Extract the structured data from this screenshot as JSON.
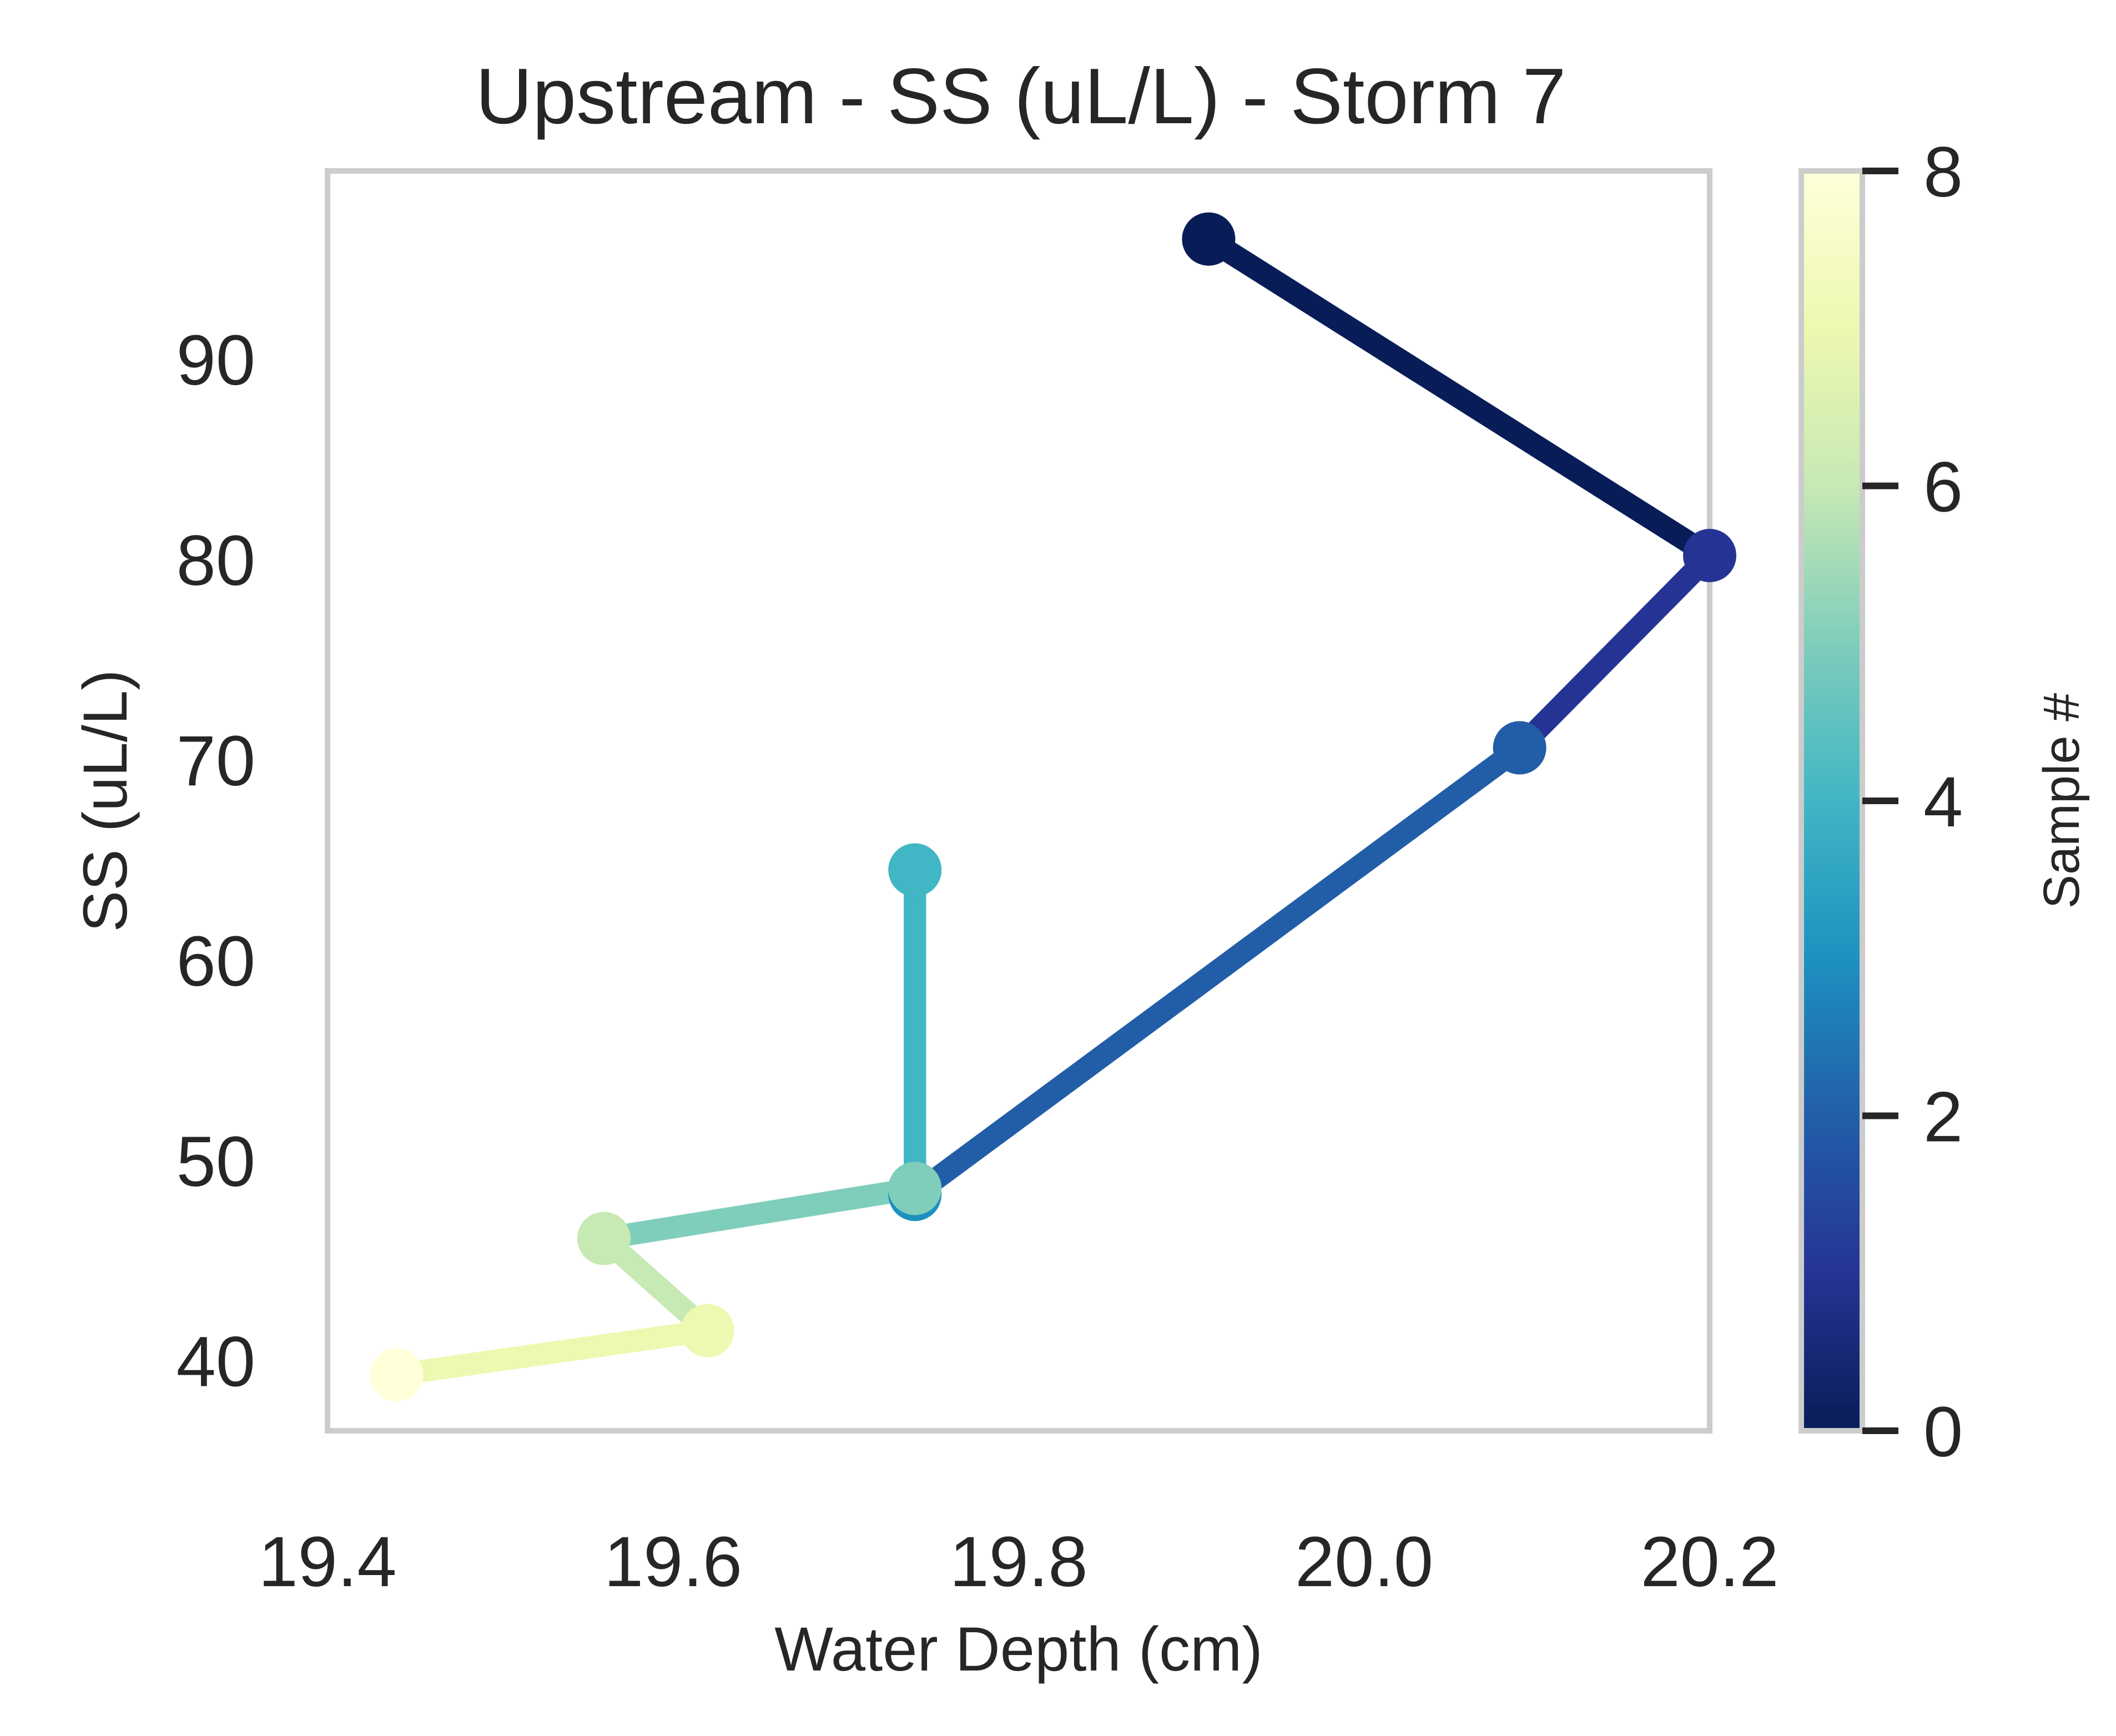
{
  "chart_data": {
    "type": "line",
    "title": "Upstream - SS (uL/L) - Storm 7",
    "xlabel": "Water Depth (cm)",
    "ylabel": "SS (uL/L)",
    "xlim": [
      19.4,
      20.2
    ],
    "ylim": [
      36.5,
      99.4
    ],
    "xticks": [
      "19.4",
      "19.6",
      "19.8",
      "20.0",
      "20.2"
    ],
    "yticks": [
      "40",
      "50",
      "60",
      "70",
      "80",
      "90"
    ],
    "grid": false,
    "colormap": "YlGnBu_r",
    "colorbar": {
      "label": "Sample #",
      "range": [
        0,
        8
      ],
      "ticks": [
        "0",
        "2",
        "4",
        "6",
        "8"
      ]
    },
    "points": [
      {
        "sample": 0,
        "x": 19.91,
        "y": 96.0
      },
      {
        "sample": 1,
        "x": 20.2,
        "y": 80.2
      },
      {
        "sample": 2,
        "x": 20.09,
        "y": 70.6
      },
      {
        "sample": 3,
        "x": 19.74,
        "y": 48.3
      },
      {
        "sample": 4,
        "x": 19.74,
        "y": 64.5
      },
      {
        "sample": 5,
        "x": 19.74,
        "y": 48.6
      },
      {
        "sample": 6,
        "x": 19.56,
        "y": 46.1
      },
      {
        "sample": 7,
        "x": 19.62,
        "y": 41.5
      },
      {
        "sample": 8,
        "x": 19.44,
        "y": 39.3
      }
    ],
    "colors": [
      "#081d58",
      "#253494",
      "#225ea8",
      "#1d91c0",
      "#41b6c4",
      "#7fcdbb",
      "#c7e9b4",
      "#edf8b1",
      "#ffffd9"
    ]
  }
}
